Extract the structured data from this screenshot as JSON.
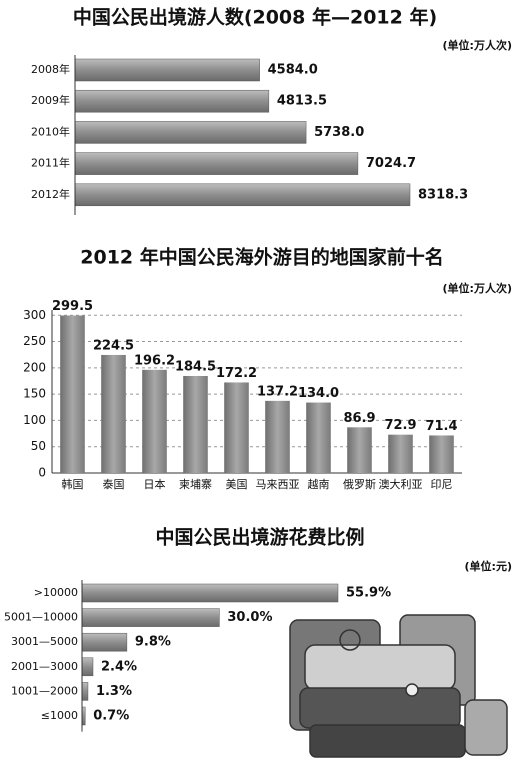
{
  "chart_data": [
    {
      "type": "bar",
      "orientation": "horizontal",
      "title": "中国公民出境游人数(2008 年—2012 年)",
      "subtitle": "(单位:万人次)",
      "categories": [
        "2008年",
        "2009年",
        "2010年",
        "2011年",
        "2012年"
      ],
      "values": [
        4584.0,
        4813.5,
        5738.0,
        7024.7,
        8318.3
      ],
      "value_labels": [
        "4584.0",
        "4813.5",
        "5738.0",
        "7024.7",
        "8318.3"
      ],
      "color": "#8a8a8a"
    },
    {
      "type": "bar",
      "orientation": "vertical",
      "title": "2012 年中国公民海外游目的地国家前十名",
      "subtitle": "(单位:万人次)",
      "categories": [
        "韩国",
        "泰国",
        "日本",
        "柬埔寨",
        "美国",
        "马来西亚",
        "越南",
        "俄罗斯",
        "澳大利亚",
        "印尼"
      ],
      "values": [
        299.5,
        224.5,
        196.2,
        184.5,
        172.2,
        137.2,
        134.0,
        86.9,
        72.9,
        71.4
      ],
      "value_labels": [
        "299.5",
        "224.5",
        "196.2",
        "184.5",
        "172.2",
        "137.2",
        "134.0",
        "86.9",
        "72.9",
        "71.4"
      ],
      "ylim": [
        0,
        310
      ],
      "yticks": [
        0,
        50,
        100,
        150,
        200,
        250,
        300
      ],
      "grid": true,
      "color": "#8a8a8a"
    },
    {
      "type": "bar",
      "orientation": "horizontal",
      "title": "中国公民出境游花费比例",
      "subtitle": "(单位:元)",
      "categories": [
        ">10000",
        "5001—10000",
        "3001—5000",
        "2001—3000",
        "1001—2000",
        "≤1000"
      ],
      "values": [
        55.9,
        30.0,
        9.8,
        2.4,
        1.3,
        0.7
      ],
      "value_labels": [
        "55.9%",
        "30.0%",
        "9.8%",
        "2.4%",
        "1.3%",
        "0.7%"
      ],
      "color": "#8a8a8a"
    }
  ]
}
